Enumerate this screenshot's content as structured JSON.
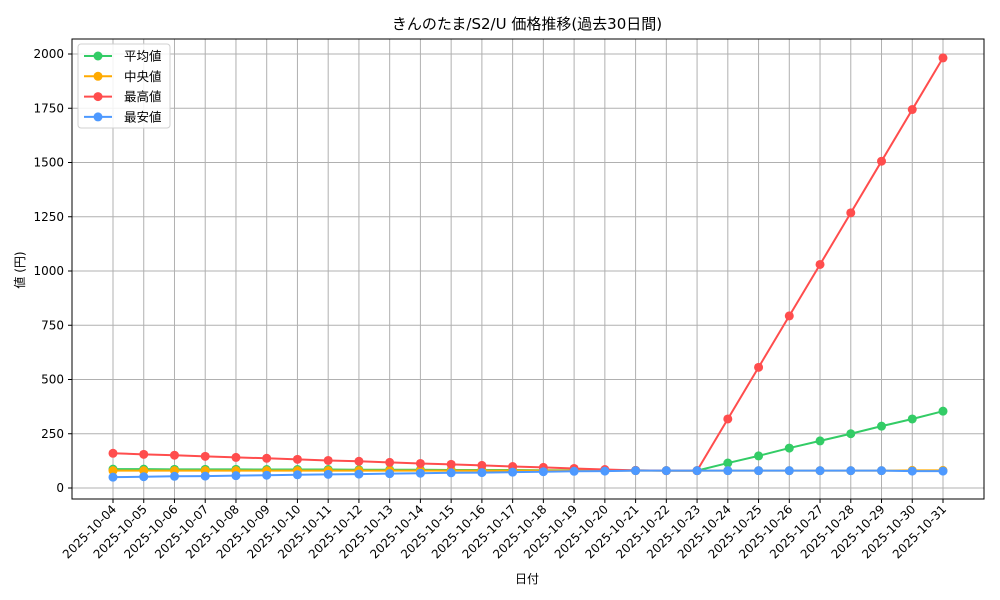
{
  "chart_data": {
    "type": "line",
    "title": "きんのたま/S2/U 価格推移(過去30日間)",
    "xlabel": "日付",
    "ylabel": "値 (円)",
    "ylim": [
      -40,
      2070
    ],
    "yticks": [
      0,
      250,
      500,
      750,
      1000,
      1250,
      1500,
      1750,
      2000
    ],
    "grid": true,
    "legend_position": "upper left",
    "categories": [
      "2025-10-04",
      "2025-10-05",
      "2025-10-06",
      "2025-10-07",
      "2025-10-08",
      "2025-10-09",
      "2025-10-10",
      "2025-10-11",
      "2025-10-12",
      "2025-10-13",
      "2025-10-14",
      "2025-10-15",
      "2025-10-16",
      "2025-10-17",
      "2025-10-18",
      "2025-10-19",
      "2025-10-20",
      "2025-10-21",
      "2025-10-22",
      "2025-10-23",
      "2025-10-24",
      "2025-10-25",
      "2025-10-26",
      "2025-10-27",
      "2025-10-28",
      "2025-10-29",
      "2025-10-30",
      "2025-10-31"
    ],
    "series": [
      {
        "name": "平均値",
        "color": "#33cc66",
        "values": [
          87,
          87,
          86,
          86,
          86,
          85,
          85,
          85,
          84,
          84,
          84,
          83,
          83,
          83,
          82,
          82,
          81,
          81,
          80,
          80,
          115,
          148,
          184,
          217,
          250,
          285,
          318,
          354
        ]
      },
      {
        "name": "中央値",
        "color": "#ffaa00",
        "values": [
          80,
          80,
          80,
          80,
          80,
          80,
          80,
          80,
          80,
          80,
          80,
          80,
          80,
          80,
          80,
          80,
          80,
          80,
          80,
          80,
          80,
          80,
          80,
          80,
          80,
          80,
          81,
          81
        ]
      },
      {
        "name": "最高値",
        "color": "#ff4d4d",
        "values": [
          160,
          155,
          151,
          146,
          141,
          137,
          132,
          127,
          123,
          118,
          113,
          109,
          104,
          99,
          95,
          90,
          85,
          81,
          80,
          80,
          318,
          556,
          793,
          1030,
          1268,
          1506,
          1744,
          1982
        ]
      },
      {
        "name": "最安値",
        "color": "#4d99ff",
        "values": [
          50,
          52,
          54,
          55,
          57,
          59,
          61,
          63,
          64,
          66,
          68,
          70,
          71,
          73,
          75,
          77,
          78,
          80,
          80,
          80,
          80,
          80,
          80,
          80,
          80,
          80,
          78,
          78
        ]
      }
    ]
  },
  "legend": {
    "items": [
      {
        "label": "平均値",
        "color": "#33cc66"
      },
      {
        "label": "中央値",
        "color": "#ffaa00"
      },
      {
        "label": "最高値",
        "color": "#ff4d4d"
      },
      {
        "label": "最安値",
        "color": "#4d99ff"
      }
    ]
  }
}
